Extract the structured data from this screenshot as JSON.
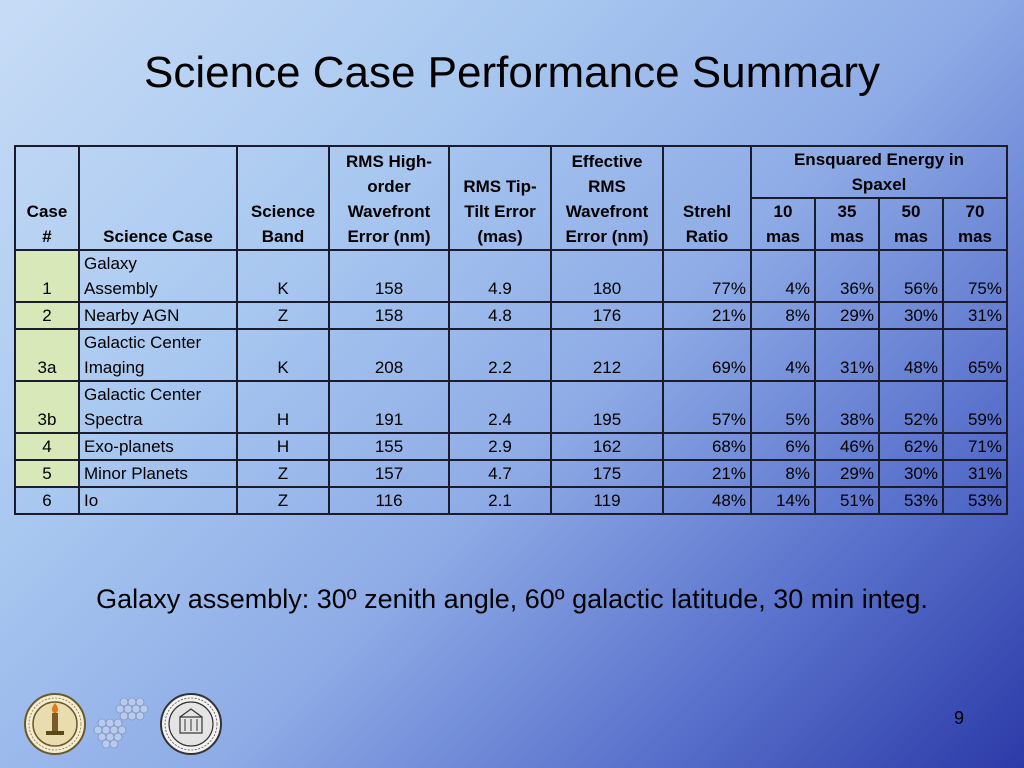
{
  "slide": {
    "title": "Science Case Performance Summary",
    "footnote": "Galaxy assembly: 30º zenith angle, 60º galactic latitude, 30 min integ.",
    "page_number": "9"
  },
  "table": {
    "headers": {
      "case": [
        "Case",
        "#"
      ],
      "science_case": "Science Case",
      "science_band": [
        "Science",
        "Band"
      ],
      "rms_high": [
        "RMS High-",
        "order",
        "Wavefront",
        "Error (nm)"
      ],
      "rms_tip": [
        "RMS Tip-",
        "Tilt Error",
        "(mas)"
      ],
      "effective": [
        "Effective",
        "RMS",
        "Wavefront",
        "Error (nm)"
      ],
      "strehl": [
        "Strehl",
        "Ratio"
      ],
      "ensquared": [
        "Ensquared Energy in",
        "Spaxel"
      ],
      "ee_cols": [
        [
          "10",
          "mas"
        ],
        [
          "35",
          "mas"
        ],
        [
          "50",
          "mas"
        ],
        [
          "70",
          "mas"
        ]
      ]
    },
    "rows": [
      {
        "case": "1",
        "science_case": [
          "Galaxy",
          "Assembly"
        ],
        "band": "K",
        "rms_high": "158",
        "rms_tip": "4.9",
        "effective": "180",
        "strehl": "77%",
        "ee": [
          "4%",
          "36%",
          "56%",
          "75%"
        ]
      },
      {
        "case": "2",
        "science_case": [
          "Nearby AGN"
        ],
        "band": "Z",
        "rms_high": "158",
        "rms_tip": "4.8",
        "effective": "176",
        "strehl": "21%",
        "ee": [
          "8%",
          "29%",
          "30%",
          "31%"
        ]
      },
      {
        "case": "3a",
        "science_case": [
          "Galactic Center",
          "Imaging"
        ],
        "band": "K",
        "rms_high": "208",
        "rms_tip": "2.2",
        "effective": "212",
        "strehl": "69%",
        "ee": [
          "4%",
          "31%",
          "48%",
          "65%"
        ]
      },
      {
        "case": "3b",
        "science_case": [
          "Galactic Center",
          "Spectra"
        ],
        "band": "H",
        "rms_high": "191",
        "rms_tip": "2.4",
        "effective": "195",
        "strehl": "57%",
        "ee": [
          "5%",
          "38%",
          "52%",
          "59%"
        ]
      },
      {
        "case": "4",
        "science_case": [
          "Exo-planets"
        ],
        "band": "H",
        "rms_high": "155",
        "rms_tip": "2.9",
        "effective": "162",
        "strehl": "68%",
        "ee": [
          "6%",
          "46%",
          "62%",
          "71%"
        ]
      },
      {
        "case": "5",
        "science_case": [
          "Minor Planets"
        ],
        "band": "Z",
        "rms_high": "157",
        "rms_tip": "4.7",
        "effective": "175",
        "strehl": "21%",
        "ee": [
          "8%",
          "29%",
          "30%",
          "31%"
        ]
      },
      {
        "case": "6",
        "science_case": [
          "Io"
        ],
        "band": "Z",
        "rms_high": "116",
        "rms_tip": "2.1",
        "effective": "119",
        "strehl": "48%",
        "ee": [
          "14%",
          "51%",
          "53%",
          "53%"
        ]
      }
    ]
  },
  "colors": {
    "case_highlight": "#d9e8b8",
    "background_light": "#c7dcf6",
    "background_dark": "#2c3aa8"
  },
  "logos": [
    "caltech-seal-logo",
    "segmented-mirror-logo",
    "university-of-california-seal-logo"
  ]
}
